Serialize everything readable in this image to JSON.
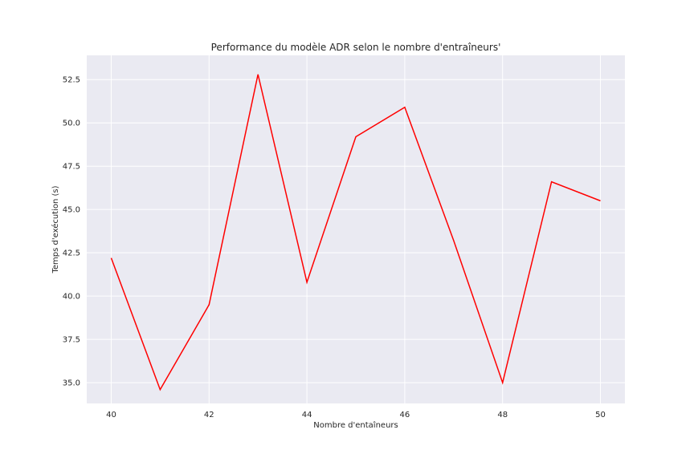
{
  "chart_data": {
    "type": "line",
    "title": "Performance du modèle ADR selon le nombre d'entraîneurs'",
    "xlabel": "Nombre d'entaîneurs",
    "ylabel": "Temps d'exécution (s)",
    "x": [
      40,
      41,
      42,
      43,
      44,
      45,
      46,
      47,
      48,
      49,
      50
    ],
    "series": [
      {
        "values": [
          42.2,
          34.6,
          39.5,
          52.8,
          40.8,
          49.2,
          50.9,
          43.2,
          35.0,
          46.6,
          45.5
        ],
        "color": "#ff0000"
      }
    ],
    "xlim": [
      39.5,
      50.5
    ],
    "ylim": [
      33.8,
      53.9
    ],
    "xticks": [
      40,
      42,
      44,
      46,
      48,
      50
    ],
    "yticks": [
      35.0,
      37.5,
      40.0,
      42.5,
      45.0,
      47.5,
      50.0,
      52.5
    ],
    "xtick_labels": [
      "40",
      "42",
      "44",
      "46",
      "48",
      "50"
    ],
    "ytick_labels": [
      "35.0",
      "37.5",
      "40.0",
      "42.5",
      "45.0",
      "47.5",
      "50.0",
      "52.5"
    ],
    "grid": true
  }
}
